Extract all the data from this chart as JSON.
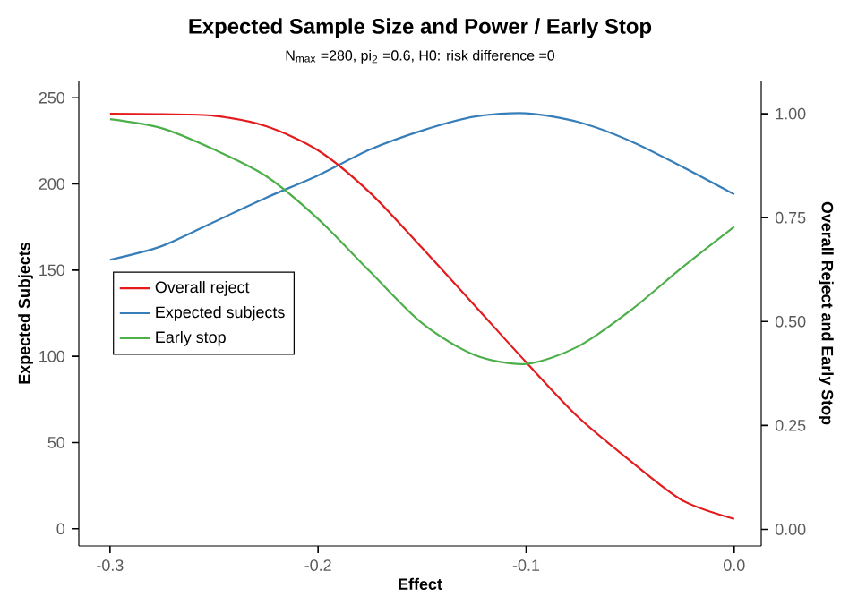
{
  "chart_data": {
    "type": "line",
    "title": "Expected Sample Size and Power / Early Stop",
    "subtitle": "N$_{max}$ =280, pi$_{2}$ =0.6, H0: risk difference =0",
    "xlabel": "Effect",
    "ylabel": "Expected Subjects",
    "y2label": "Overall Reject and Early Stop",
    "xlim": [
      -0.315,
      0.013
    ],
    "xticks": [
      -0.3,
      -0.2,
      -0.1,
      {
        "value": 0,
        "label": "0.0"
      }
    ],
    "ylim": [
      -10,
      260
    ],
    "yticks": [
      0,
      50,
      100,
      150,
      200,
      250
    ],
    "y2lim": [
      -0.04,
      1.08
    ],
    "y2ticks": [
      {
        "value": 0,
        "label": "0.00"
      },
      {
        "value": 0.25,
        "label": "0.25"
      },
      {
        "value": 0.5,
        "label": "0.50"
      },
      {
        "value": 0.75,
        "label": "0.75"
      },
      {
        "value": 1,
        "label": "1.00"
      }
    ],
    "x": [
      -0.3,
      -0.275,
      -0.25,
      -0.225,
      -0.2,
      -0.175,
      -0.15,
      -0.125,
      -0.1,
      -0.075,
      -0.05,
      -0.025,
      0
    ],
    "legend": "left",
    "marker": "none",
    "line_style": "solid",
    "grid": false,
    "series": [
      {
        "name": "Overall reject",
        "color": "#e41a1c",
        "axis": "y2",
        "values": [
          1.0,
          0.999,
          0.995,
          0.97,
          0.912,
          0.81,
          0.677,
          0.54,
          0.402,
          0.27,
          0.165,
          0.07,
          0.025
        ]
      },
      {
        "name": "Expected subjects",
        "color": "#377eb8",
        "values": [
          156,
          164,
          178,
          192,
          205,
          220,
          231,
          239,
          241,
          236,
          225,
          210,
          194
        ]
      },
      {
        "name": "Early stop",
        "color": "#4daf4a",
        "axis": "y2",
        "values": [
          0.987,
          0.965,
          0.914,
          0.85,
          0.747,
          0.62,
          0.496,
          0.42,
          0.398,
          0.44,
          0.526,
          0.63,
          0.728
        ]
      }
    ]
  }
}
